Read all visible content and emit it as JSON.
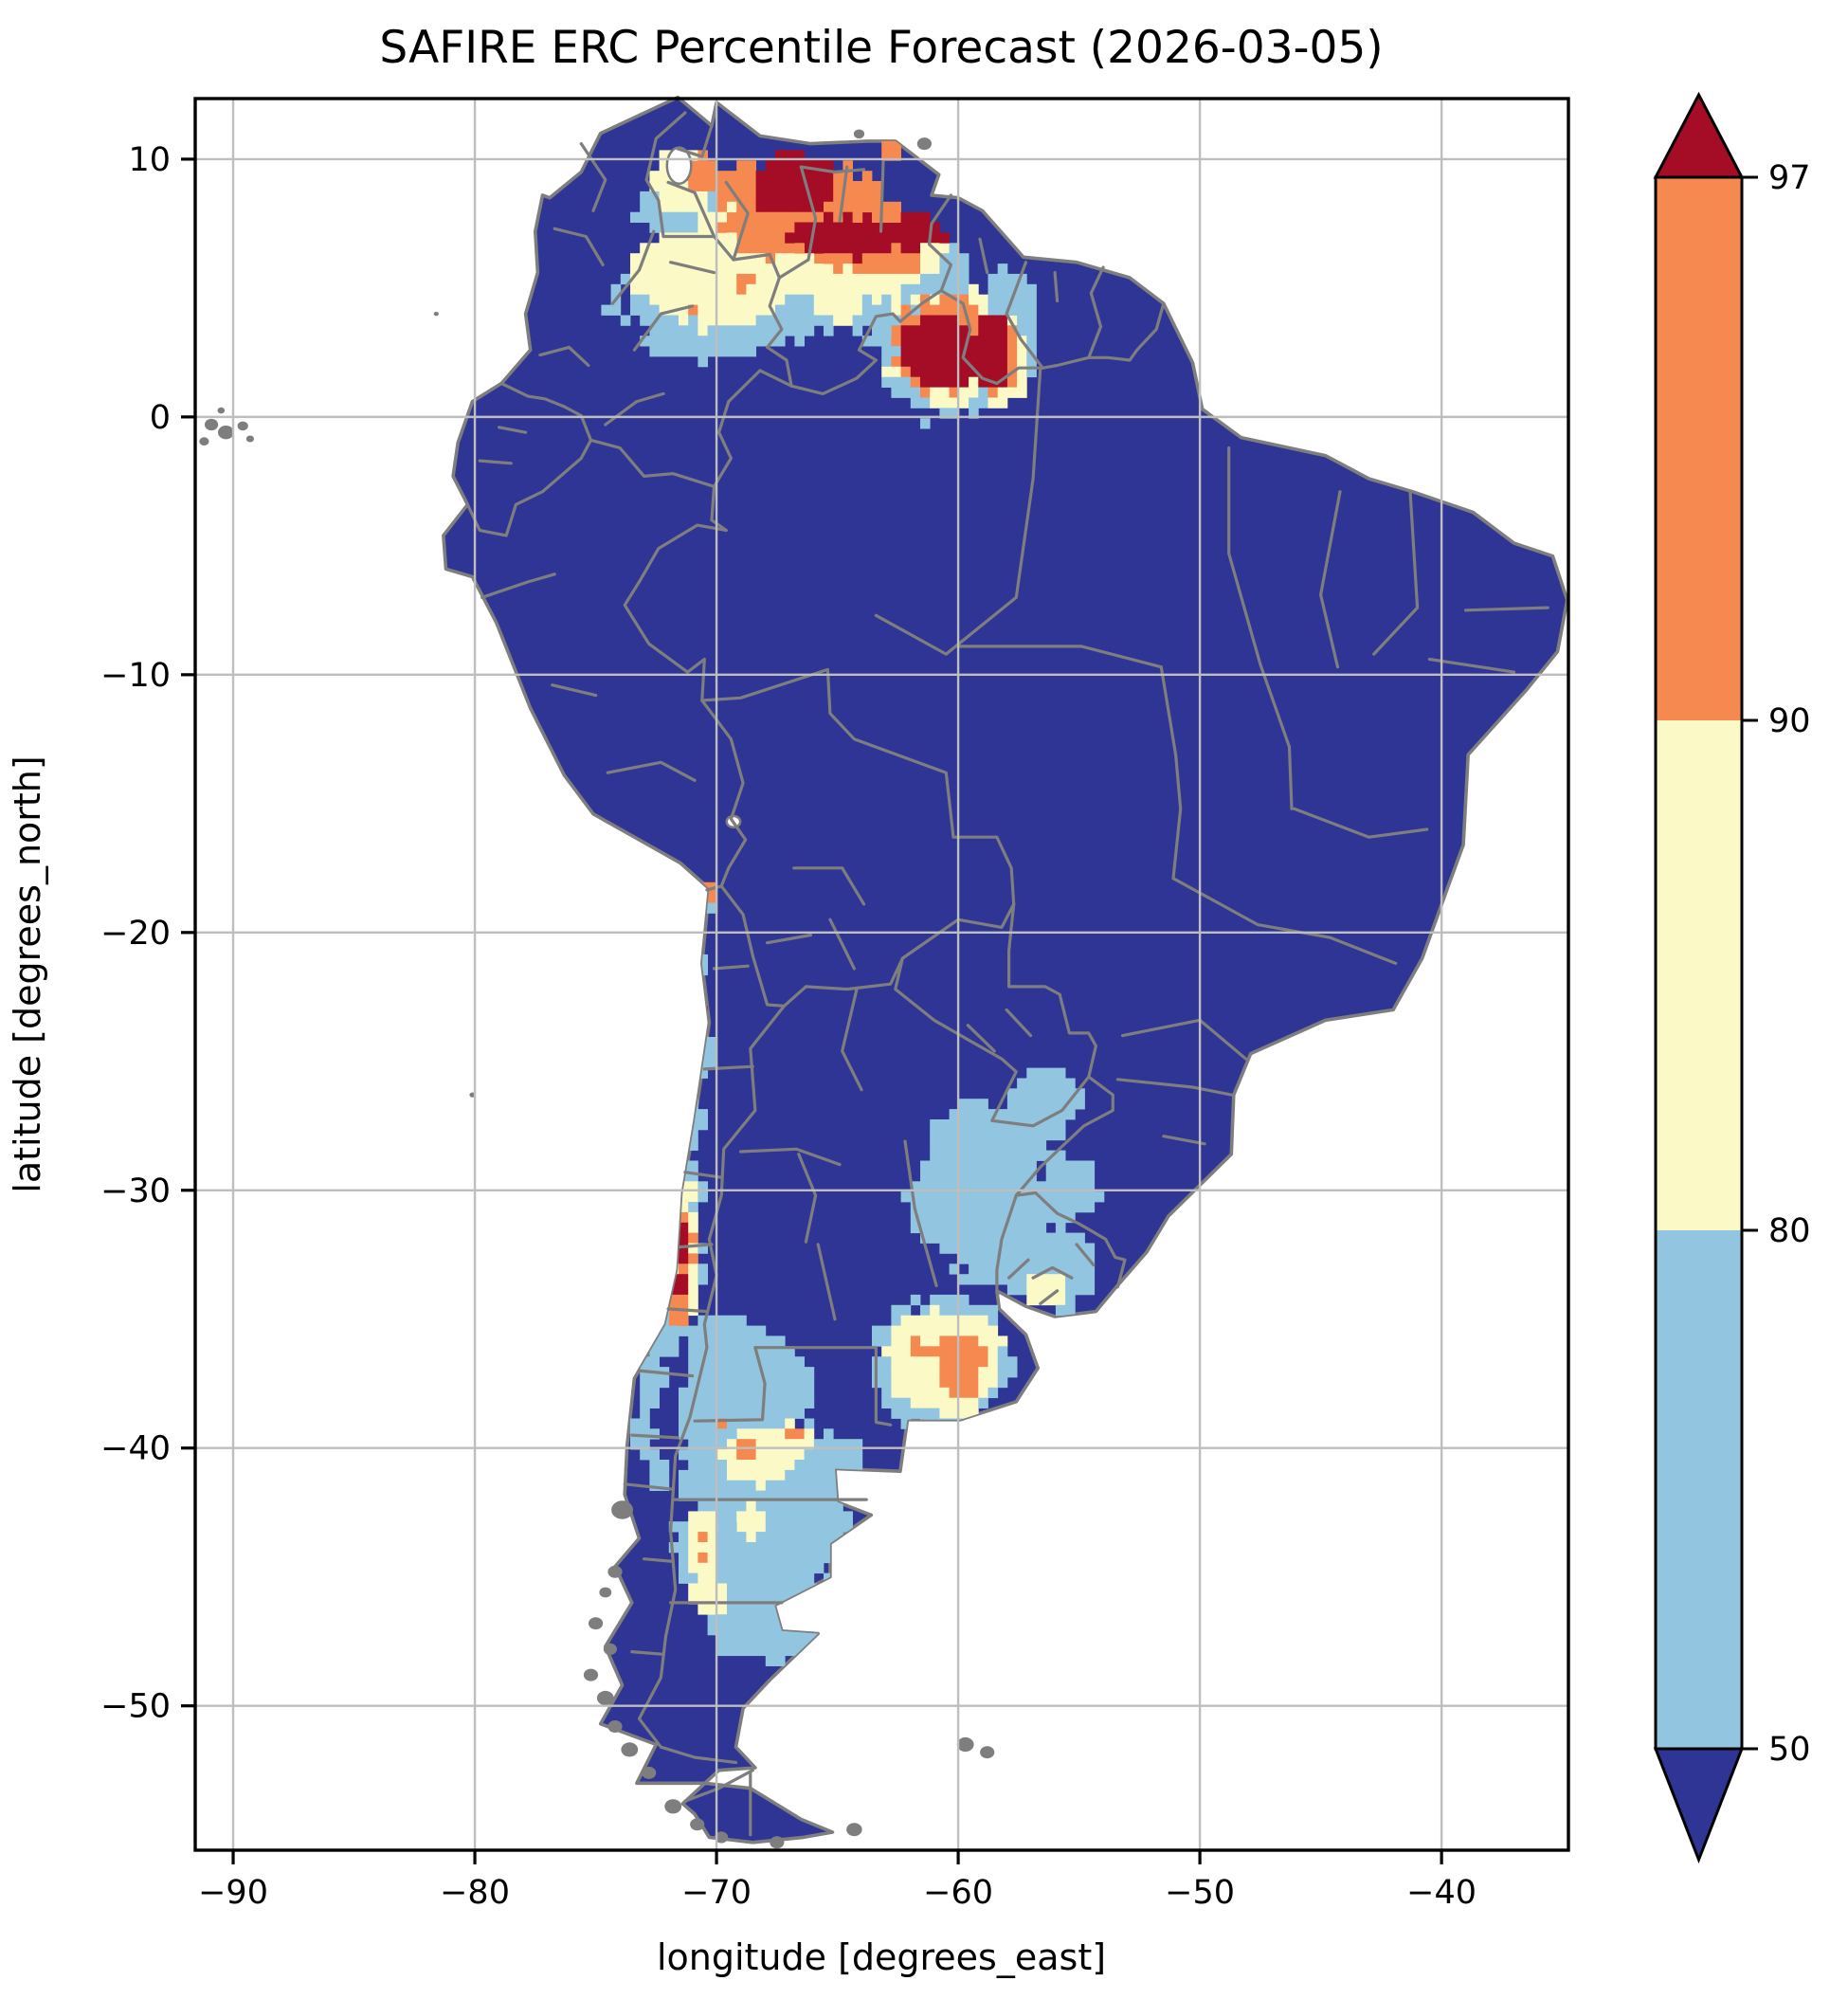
{
  "title": "SAFIRE ERC Percentile Forecast (2026-03-05)",
  "axes": {
    "xlabel": "longitude [degrees_east]",
    "ylabel": "latitude [degrees_north]",
    "xtick_labels": [
      "−90",
      "−80",
      "−70",
      "−60",
      "−50",
      "−40"
    ],
    "xtick_values": [
      -90,
      -80,
      -70,
      -60,
      -50,
      -40
    ],
    "ytick_labels": [
      "10",
      "0",
      "−10",
      "−20",
      "−30",
      "−40",
      "−50"
    ],
    "ytick_values": [
      10,
      0,
      -10,
      -20,
      -30,
      -40,
      -50
    ],
    "xlim": [
      -91.57,
      -34.75
    ],
    "ylim": [
      -55.6,
      12.35
    ],
    "grid": true
  },
  "colorbar": {
    "orientation": "vertical",
    "extend": "both",
    "tick_labels": [
      "97",
      "90",
      "80",
      "50"
    ],
    "tick_values": [
      97,
      90,
      80,
      50
    ],
    "boundaries": [
      50,
      80,
      90,
      97
    ],
    "segment_colors": [
      "#92C5E0",
      "#FBFAC7",
      "#F5894F",
      "#A50C26"
    ],
    "under_color": "#2E3594",
    "over_color": "#A50C26"
  },
  "chart_data": {
    "type": "heatmap",
    "subtype": "geographic-percentile-map",
    "region": "South America",
    "variable": "ERC percentile",
    "forecast_date": "2026-03-05",
    "classes": [
      {
        "range": "< 50",
        "color": "#2E3594",
        "label": "below 50th percentile (base land fill)"
      },
      {
        "range": "50-80",
        "color": "#92C5E0"
      },
      {
        "range": "80-90",
        "color": "#FBFAC7"
      },
      {
        "range": "90-97",
        "color": "#F5894F"
      },
      {
        "range": "> 97",
        "color": "#A50C26"
      }
    ],
    "map_style": {
      "ocean_color": "#FFFFFF",
      "land_color": "#2E3594",
      "border_color": "#7E7E7E",
      "gridline_color": "#BEBEBE",
      "lake_color": "#FFFFFF"
    },
    "hotspots": [
      {
        "level": "50-80",
        "color": "#92C5E0",
        "ellipses": [
          [
            -69.6,
            4.6,
            4.6,
            2.3
          ],
          [
            -63.6,
            5.4,
            3.6,
            2.1
          ],
          [
            -71.2,
            8.1,
            2.1,
            1.6
          ],
          [
            -60.9,
            5.6,
            1.5,
            1.1
          ],
          [
            -72.2,
            5.2,
            1.4,
            1.2
          ],
          [
            -60.2,
            2.6,
            3.3,
            2.7
          ],
          [
            -57.9,
            4.7,
            1.1,
            1.0
          ],
          [
            -57.6,
            3.2,
            1.0,
            1.6
          ],
          [
            -70.4,
            -18.6,
            0.6,
            0.5
          ],
          [
            -70.7,
            -21.1,
            0.45,
            0.45
          ],
          [
            -70.5,
            -24.7,
            0.5,
            0.9
          ],
          [
            -71.2,
            -29.9,
            0.75,
            1.1
          ],
          [
            -71.4,
            -32.5,
            0.9,
            2.7
          ],
          [
            -72.2,
            -35.3,
            0.9,
            1.1
          ],
          [
            -71.0,
            -27.3,
            0.5,
            1.0
          ],
          [
            -58.9,
            -28.6,
            2.7,
            2.1
          ],
          [
            -58.3,
            -31.5,
            2.4,
            2.3
          ],
          [
            -56.4,
            -26.6,
            1.6,
            1.4
          ],
          [
            -60.4,
            -30.4,
            1.6,
            1.9
          ],
          [
            -56.2,
            -33.0,
            1.9,
            1.7
          ],
          [
            -55.4,
            -29.9,
            1.3,
            1.2
          ],
          [
            -60.7,
            -36.7,
            2.9,
            2.5
          ],
          [
            -68.6,
            -37.6,
            2.7,
            1.9
          ],
          [
            -69.6,
            -36.1,
            1.6,
            1.3
          ],
          [
            -68.0,
            -41.1,
            3.3,
            2.3
          ],
          [
            -69.4,
            -44.1,
            2.3,
            2.5
          ],
          [
            -67.6,
            -46.4,
            2.6,
            1.8
          ],
          [
            -66.4,
            -43.1,
            2.1,
            2.1
          ],
          [
            -70.2,
            -39.1,
            1.5,
            1.7
          ],
          [
            -65.2,
            -40.7,
            1.5,
            1.1
          ],
          [
            -68.9,
            -47.3,
            1.3,
            0.8
          ],
          [
            -72.7,
            -37.3,
            0.6,
            1.2
          ],
          [
            -73.0,
            -39.5,
            0.5,
            1.0
          ],
          [
            -72.5,
            -41.0,
            0.5,
            0.8
          ]
        ]
      },
      {
        "level": "80-90",
        "color": "#FBFAC7",
        "ellipses": [
          [
            -70.1,
            5.4,
            3.3,
            1.9
          ],
          [
            -67.1,
            6.9,
            3.5,
            2.3
          ],
          [
            -63.9,
            6.0,
            2.3,
            1.6
          ],
          [
            -71.4,
            9.1,
            1.3,
            1.2
          ],
          [
            -61.9,
            6.4,
            1.3,
            1.0
          ],
          [
            -65.0,
            4.6,
            1.1,
            0.9
          ],
          [
            -60.2,
            2.7,
            2.7,
            2.2
          ],
          [
            -58.2,
            2.0,
            1.1,
            1.7
          ],
          [
            -71.3,
            -31.5,
            0.6,
            1.2
          ],
          [
            -71.5,
            -33.7,
            0.65,
            1.5
          ],
          [
            -71.1,
            -30.0,
            0.45,
            0.55
          ],
          [
            -70.6,
            -23.4,
            0.3,
            0.4
          ],
          [
            -56.3,
            -33.8,
            1.0,
            0.8
          ],
          [
            -60.6,
            -36.7,
            2.4,
            2.1
          ],
          [
            -68.3,
            -40.3,
            1.6,
            1.1
          ],
          [
            -66.9,
            -39.7,
            0.9,
            0.7
          ],
          [
            -70.6,
            -43.8,
            0.7,
            1.4
          ],
          [
            -68.5,
            -42.8,
            0.6,
            0.7
          ],
          [
            -70.2,
            -45.8,
            0.8,
            0.7
          ]
        ]
      },
      {
        "level": "90-97",
        "color": "#F5894F",
        "ellipses": [
          [
            -66.4,
            8.1,
            3.3,
            2.0
          ],
          [
            -63.6,
            7.0,
            2.5,
            1.5
          ],
          [
            -69.0,
            9.0,
            1.2,
            0.9
          ],
          [
            -70.7,
            9.4,
            0.8,
            0.7
          ],
          [
            -62.9,
            10.3,
            0.5,
            0.35
          ],
          [
            -68.9,
            5.2,
            0.35,
            0.3
          ],
          [
            -70.9,
            4.1,
            0.3,
            0.3
          ],
          [
            -60.4,
            2.8,
            2.3,
            1.9
          ],
          [
            -58.4,
            2.2,
            0.9,
            1.5
          ],
          [
            -71.4,
            -32.4,
            0.45,
            1.4
          ],
          [
            -71.6,
            -34.5,
            0.45,
            0.9
          ],
          [
            -70.3,
            -18.4,
            0.32,
            0.28
          ],
          [
            -70.7,
            -23.7,
            0.3,
            0.3
          ],
          [
            -60.0,
            -36.3,
            1.1,
            0.6
          ],
          [
            -59.9,
            -37.3,
            0.8,
            0.85
          ],
          [
            -61.7,
            -36.1,
            0.4,
            0.3
          ],
          [
            -68.7,
            -40.1,
            0.45,
            0.35
          ],
          [
            -66.9,
            -39.5,
            0.35,
            0.3
          ],
          [
            -69.9,
            -38.9,
            0.3,
            0.25
          ],
          [
            -70.7,
            -43.3,
            0.32,
            0.3
          ],
          [
            -70.5,
            -44.2,
            0.3,
            0.3
          ]
        ]
      },
      {
        "level": "> 97",
        "color": "#A50C26",
        "ellipses": [
          [
            -66.7,
            9.0,
            1.8,
            1.1
          ],
          [
            -64.7,
            7.0,
            2.5,
            0.8
          ],
          [
            -62.0,
            7.1,
            1.4,
            0.65
          ],
          [
            -68.0,
            8.4,
            0.6,
            0.5
          ],
          [
            -60.7,
            2.6,
            1.7,
            1.4
          ],
          [
            -58.6,
            2.6,
            0.7,
            1.6
          ],
          [
            -71.45,
            -32.1,
            0.3,
            0.8
          ],
          [
            -71.6,
            -33.7,
            0.3,
            0.65
          ],
          [
            -71.2,
            -30.0,
            0.22,
            0.25
          ],
          [
            -70.75,
            -23.2,
            0.26,
            0.3
          ]
        ]
      }
    ]
  }
}
